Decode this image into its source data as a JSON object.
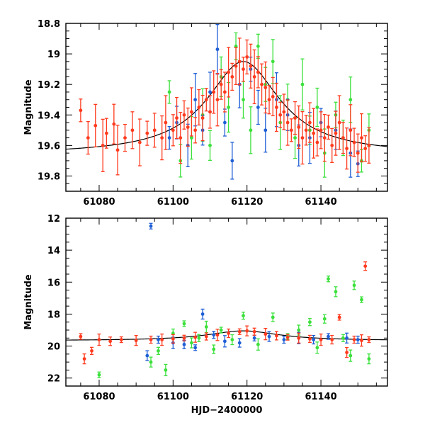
{
  "chart_data": [
    {
      "type": "scatter",
      "title": "",
      "xlabel": "",
      "ylabel": "Magnitude",
      "xlim": [
        61071,
        61158
      ],
      "ylim": [
        19.9,
        18.8
      ],
      "x_ticks": [
        61080,
        61100,
        61120,
        61140
      ],
      "y_ticks": [
        18.8,
        19,
        19.2,
        19.4,
        19.6,
        19.8
      ],
      "x_tick_labels": [
        "61080",
        "61100",
        "61120",
        "61140"
      ],
      "y_tick_labels": [
        "18.8",
        "19",
        "19.2",
        "19.4",
        "19.6",
        "19.8"
      ],
      "model_curve": {
        "peak_x": 61119,
        "peak_mag": 19.05,
        "baseline_mag": 19.66,
        "width": 12
      },
      "series": [
        {
          "name": "red",
          "color": "#ff3a1e",
          "points": [
            [
              61075,
              19.37
            ],
            [
              61077,
              19.55
            ],
            [
              61079,
              19.47
            ],
            [
              61081,
              19.6
            ],
            [
              61082,
              19.52
            ],
            [
              61084,
              19.46
            ],
            [
              61085,
              19.63
            ],
            [
              61087,
              19.55
            ],
            [
              61089,
              19.5
            ],
            [
              61091,
              19.58
            ],
            [
              61093,
              19.52
            ],
            [
              61095,
              19.5
            ],
            [
              61097,
              19.55
            ],
            [
              61098,
              19.45
            ],
            [
              61100,
              19.5
            ],
            [
              61101,
              19.42
            ],
            [
              61102,
              19.55
            ],
            [
              61103,
              19.4
            ],
            [
              61104,
              19.48
            ],
            [
              61105,
              19.38
            ],
            [
              61106,
              19.5
            ],
            [
              61107,
              19.35
            ],
            [
              61108,
              19.42
            ],
            [
              61109,
              19.3
            ],
            [
              61110,
              19.38
            ],
            [
              61111,
              19.25
            ],
            [
              61112,
              19.3
            ],
            [
              61113,
              19.2
            ],
            [
              61114,
              19.25
            ],
            [
              61115,
              19.12
            ],
            [
              61116,
              19.15
            ],
            [
              61117,
              19.08
            ],
            [
              61118,
              19.05
            ],
            [
              61119,
              19.1
            ],
            [
              61120,
              19.02
            ],
            [
              61121,
              19.08
            ],
            [
              61122,
              19.15
            ],
            [
              61123,
              19.12
            ],
            [
              61124,
              19.2
            ],
            [
              61125,
              19.22
            ],
            [
              61126,
              19.3
            ],
            [
              61127,
              19.28
            ],
            [
              61128,
              19.35
            ],
            [
              61129,
              19.4
            ],
            [
              61130,
              19.38
            ],
            [
              61131,
              19.45
            ],
            [
              61132,
              19.5
            ],
            [
              61133,
              19.42
            ],
            [
              61134,
              19.48
            ],
            [
              61135,
              19.55
            ],
            [
              61136,
              19.5
            ],
            [
              61137,
              19.45
            ],
            [
              61138,
              19.52
            ],
            [
              61139,
              19.58
            ],
            [
              61140,
              19.5
            ],
            [
              61141,
              19.55
            ],
            [
              61142,
              19.48
            ],
            [
              61143,
              19.6
            ],
            [
              61144,
              19.52
            ],
            [
              61145,
              19.45
            ],
            [
              61146,
              19.55
            ],
            [
              61147,
              19.62
            ],
            [
              61148,
              19.5
            ],
            [
              61149,
              19.58
            ],
            [
              61150,
              19.65
            ],
            [
              61151,
              19.55
            ],
            [
              61152,
              19.62
            ],
            [
              61153,
              19.6
            ]
          ]
        },
        {
          "name": "blue",
          "color": "#1f5fd6",
          "points": [
            [
              61099,
              19.55
            ],
            [
              61101,
              19.45
            ],
            [
              61104,
              19.6
            ],
            [
              61106,
              19.3
            ],
            [
              61108,
              19.5
            ],
            [
              61110,
              19.25
            ],
            [
              61112,
              18.97
            ],
            [
              61114,
              19.45
            ],
            [
              61116,
              19.7
            ],
            [
              61118,
              19.2
            ],
            [
              61121,
              19.1
            ],
            [
              61123,
              19.35
            ],
            [
              61125,
              19.5
            ],
            [
              61128,
              19.3
            ],
            [
              61131,
              19.4
            ],
            [
              61134,
              19.6
            ],
            [
              61137,
              19.55
            ],
            [
              61140,
              19.45
            ],
            [
              61144,
              19.5
            ],
            [
              61148,
              19.65
            ],
            [
              61150,
              19.72
            ]
          ]
        },
        {
          "name": "green",
          "color": "#3be03b",
          "points": [
            [
              61099,
              19.25
            ],
            [
              61102,
              19.7
            ],
            [
              61105,
              19.55
            ],
            [
              61108,
              19.4
            ],
            [
              61110,
              19.6
            ],
            [
              61113,
              19.15
            ],
            [
              61115,
              19.35
            ],
            [
              61117,
              18.95
            ],
            [
              61119,
              19.3
            ],
            [
              61121,
              19.5
            ],
            [
              61123,
              18.95
            ],
            [
              61125,
              19.2
            ],
            [
              61127,
              19.05
            ],
            [
              61129,
              19.45
            ],
            [
              61131,
              19.3
            ],
            [
              61133,
              19.55
            ],
            [
              61135,
              19.2
            ],
            [
              61137,
              19.5
            ],
            [
              61139,
              19.35
            ],
            [
              61141,
              19.65
            ],
            [
              61144,
              19.4
            ],
            [
              61146,
              19.55
            ],
            [
              61148,
              19.3
            ],
            [
              61151,
              19.7
            ],
            [
              61153,
              19.5
            ]
          ]
        }
      ]
    },
    {
      "type": "scatter",
      "title": "",
      "xlabel": "HJD−2400000",
      "ylabel": "Magnitude",
      "xlim": [
        61071,
        61158
      ],
      "ylim": [
        22.5,
        12
      ],
      "x_ticks": [
        61080,
        61100,
        61120,
        61140
      ],
      "y_ticks": [
        12,
        14,
        16,
        18,
        20,
        22
      ],
      "x_tick_labels": [
        "61080",
        "61100",
        "61120",
        "61140"
      ],
      "y_tick_labels": [
        "12",
        "14",
        "16",
        "18",
        "20",
        "22"
      ],
      "model_curve": {
        "peak_x": 61119,
        "peak_mag": 19.05,
        "baseline_mag": 19.66,
        "width": 12
      },
      "series": [
        {
          "name": "red",
          "color": "#ff3a1e",
          "points": [
            [
              61075,
              19.4
            ],
            [
              61076,
              20.8
            ],
            [
              61078,
              20.3
            ],
            [
              61080,
              19.6
            ],
            [
              61083,
              19.7
            ],
            [
              61086,
              19.6
            ],
            [
              61090,
              19.65
            ],
            [
              61094,
              19.6
            ],
            [
              61097,
              19.6
            ],
            [
              61100,
              19.55
            ],
            [
              61103,
              19.5
            ],
            [
              61106,
              19.45
            ],
            [
              61109,
              19.4
            ],
            [
              61112,
              19.3
            ],
            [
              61115,
              19.2
            ],
            [
              61118,
              19.1
            ],
            [
              61120,
              19.05
            ],
            [
              61122,
              19.1
            ],
            [
              61125,
              19.25
            ],
            [
              61128,
              19.35
            ],
            [
              61131,
              19.45
            ],
            [
              61134,
              19.5
            ],
            [
              61137,
              19.55
            ],
            [
              61140,
              19.6
            ],
            [
              61143,
              19.6
            ],
            [
              61145,
              18.2
            ],
            [
              61147,
              20.4
            ],
            [
              61149,
              19.6
            ],
            [
              61151,
              19.65
            ],
            [
              61152,
              15.0
            ],
            [
              61153,
              19.6
            ]
          ]
        },
        {
          "name": "blue",
          "color": "#1f5fd6",
          "points": [
            [
              61094,
              12.5
            ],
            [
              61093,
              20.6
            ],
            [
              61096,
              19.6
            ],
            [
              61100,
              19.8
            ],
            [
              61103,
              19.9
            ],
            [
              61106,
              20.1
            ],
            [
              61108,
              18.0
            ],
            [
              61111,
              19.3
            ],
            [
              61114,
              19.7
            ],
            [
              61118,
              19.8
            ],
            [
              61122,
              19.5
            ],
            [
              61126,
              19.4
            ],
            [
              61130,
              19.6
            ],
            [
              61134,
              19.5
            ],
            [
              61138,
              19.6
            ],
            [
              61142,
              19.4
            ],
            [
              61147,
              19.5
            ],
            [
              61150,
              19.6
            ]
          ]
        },
        {
          "name": "green",
          "color": "#3be03b",
          "points": [
            [
              61080,
              21.8
            ],
            [
              61094,
              21.0
            ],
            [
              61096,
              20.3
            ],
            [
              61098,
              21.5
            ],
            [
              61100,
              19.2
            ],
            [
              61103,
              18.6
            ],
            [
              61105,
              19.8
            ],
            [
              61107,
              19.5
            ],
            [
              61109,
              18.8
            ],
            [
              61111,
              20.2
            ],
            [
              61113,
              19.0
            ],
            [
              61116,
              19.6
            ],
            [
              61119,
              18.1
            ],
            [
              61123,
              19.9
            ],
            [
              61127,
              18.2
            ],
            [
              61131,
              19.4
            ],
            [
              61134,
              19.0
            ],
            [
              61137,
              18.5
            ],
            [
              61139,
              20.1
            ],
            [
              61141,
              18.3
            ],
            [
              61142,
              15.8
            ],
            [
              61144,
              16.6
            ],
            [
              61146,
              19.5
            ],
            [
              61148,
              20.6
            ],
            [
              61149,
              16.2
            ],
            [
              61151,
              17.1
            ],
            [
              61153,
              20.8
            ]
          ]
        }
      ]
    }
  ]
}
